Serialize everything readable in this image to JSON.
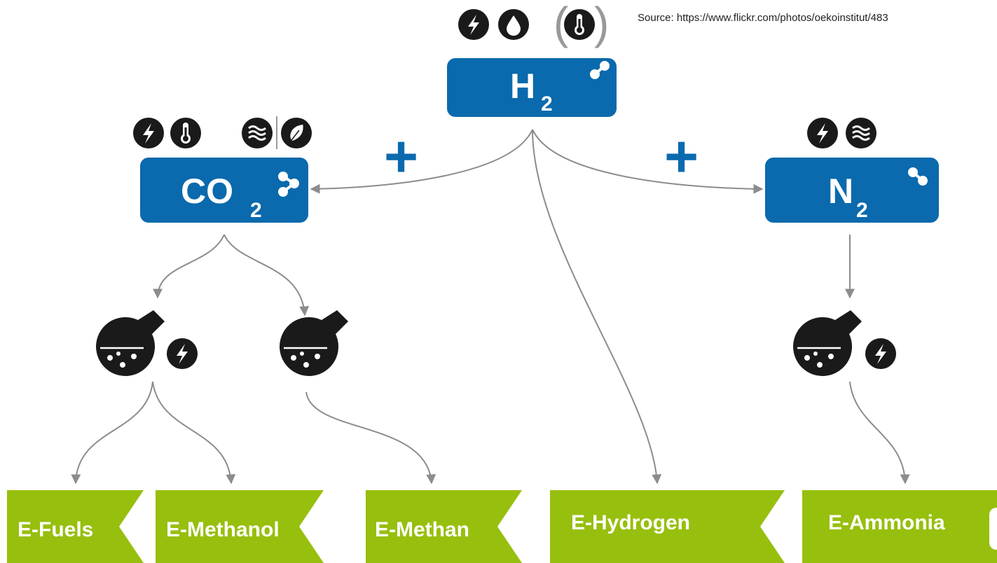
{
  "source": "Source: https://www.flickr.com/photos/oekoinstitut/483",
  "nodes": [
    {
      "label": "H",
      "subscript": "2"
    },
    {
      "label": "CO",
      "subscript": "2"
    },
    {
      "label": "N",
      "subscript": "2"
    }
  ],
  "operators": [
    "+",
    "+"
  ],
  "products": [
    "E-Fuels",
    "E-Methanol",
    "E-Methan",
    "E-Hydrogen",
    "E-Ammonia"
  ]
}
